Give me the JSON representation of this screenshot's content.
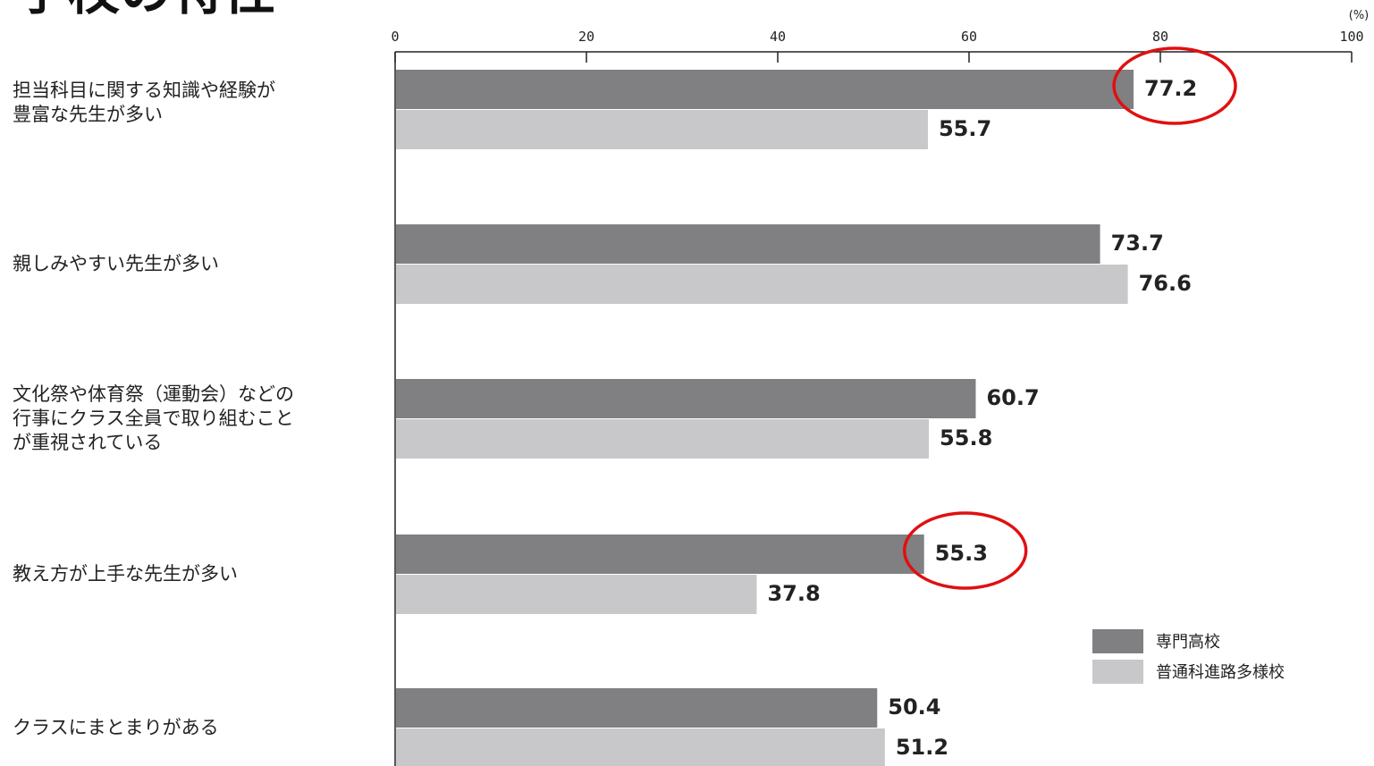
{
  "page": {
    "title_fragment": "学校の特性"
  },
  "chart_data": {
    "type": "bar",
    "orientation": "horizontal",
    "unit_label": "(%)",
    "xlim": [
      0,
      100
    ],
    "ticks": [
      0,
      20,
      40,
      60,
      80,
      100
    ],
    "categories": [
      "担当科目に関する知識や経験が\n豊富な先生が多い",
      "親しみやすい先生が多い",
      "文化祭や体育祭（運動会）などの\n行事にクラス全員で取り組むこと\nが重視されている",
      "教え方が上手な先生が多い",
      "クラスにまとまりがある"
    ],
    "series": [
      {
        "name": "専門高校",
        "color": "#808083",
        "values": [
          77.2,
          73.7,
          60.7,
          55.3,
          50.4
        ]
      },
      {
        "name": "普通科進路多様校",
        "color": "#c8c8ca",
        "values": [
          55.7,
          76.6,
          55.8,
          37.8,
          51.2
        ]
      }
    ],
    "highlighted": [
      {
        "series": 0,
        "category": 0,
        "color": "#e01010"
      },
      {
        "series": 0,
        "category": 3,
        "color": "#e01010"
      }
    ],
    "legend_position": "lower-right",
    "grid": false
  }
}
